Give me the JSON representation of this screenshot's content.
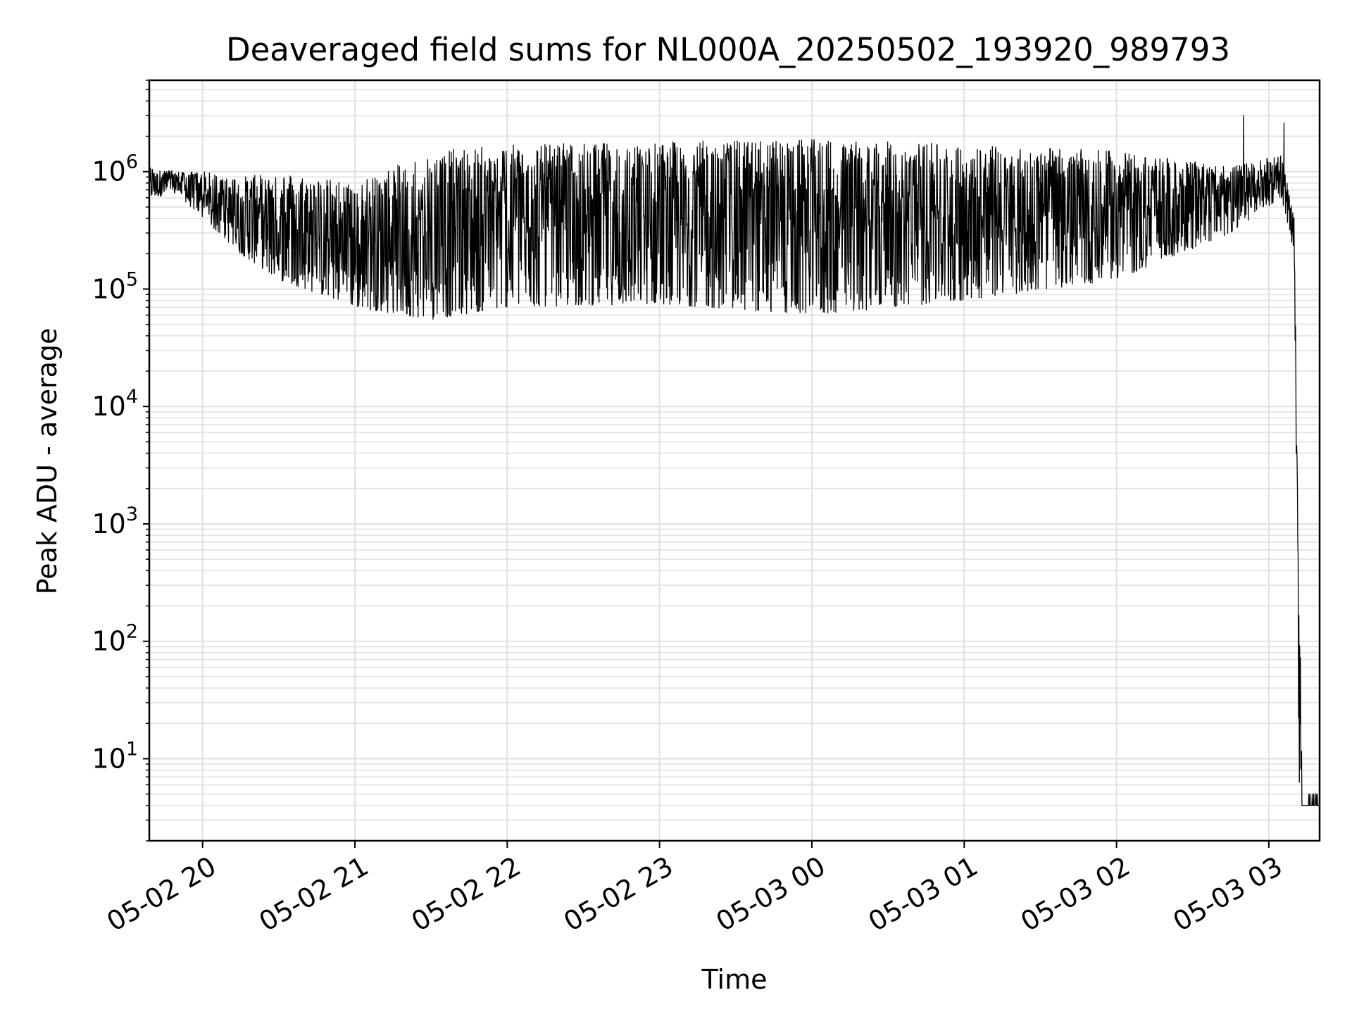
{
  "chart_data": {
    "type": "line",
    "title": "Deaveraged field sums for NL000A_20250502_193920_989793",
    "xlabel": "Time",
    "ylabel": "Peak ADU - average",
    "yscale": "log",
    "ylim": [
      2,
      6000000
    ],
    "xlim": [
      "05-02 19:39",
      "05-03 03:20"
    ],
    "grid": true,
    "x_tick_labels": [
      "05-02 20",
      "05-02 21",
      "05-02 22",
      "05-02 23",
      "05-03 00",
      "05-03 01",
      "05-03 02",
      "05-03 03"
    ],
    "y_tick_labels": [
      {
        "base": "10",
        "exp": "1"
      },
      {
        "base": "10",
        "exp": "2"
      },
      {
        "base": "10",
        "exp": "3"
      },
      {
        "base": "10",
        "exp": "4"
      },
      {
        "base": "10",
        "exp": "5"
      },
      {
        "base": "10",
        "exp": "6"
      }
    ],
    "series": [
      {
        "color": "#000000",
        "envelope": [
          {
            "t": "05-02 19:39",
            "lo": 600000,
            "hi": 1100000
          },
          {
            "t": "05-02 19:50",
            "lo": 650000,
            "hi": 1000000
          },
          {
            "t": "05-02 20:00",
            "lo": 400000,
            "hi": 1000000
          },
          {
            "t": "05-02 20:15",
            "lo": 200000,
            "hi": 900000
          },
          {
            "t": "05-02 20:30",
            "lo": 120000,
            "hi": 1000000
          },
          {
            "t": "05-02 21:00",
            "lo": 70000,
            "hi": 800000
          },
          {
            "t": "05-02 21:30",
            "lo": 55000,
            "hi": 1500000
          },
          {
            "t": "05-02 22:00",
            "lo": 70000,
            "hi": 1700000
          },
          {
            "t": "05-02 23:00",
            "lo": 75000,
            "hi": 1800000
          },
          {
            "t": "05-03 00:00",
            "lo": 60000,
            "hi": 1900000
          },
          {
            "t": "05-03 01:00",
            "lo": 80000,
            "hi": 1700000
          },
          {
            "t": "05-03 02:00",
            "lo": 120000,
            "hi": 1500000
          },
          {
            "t": "05-03 02:45",
            "lo": 300000,
            "hi": 1100000
          },
          {
            "t": "05-03 03:05",
            "lo": 600000,
            "hi": 1400000
          },
          {
            "t": "05-03 03:10",
            "lo": 200000,
            "hi": 400000
          },
          {
            "t": "05-03 03:12",
            "lo": 4,
            "hi": 100
          },
          {
            "t": "05-03 03:20",
            "lo": 4,
            "hi": 4
          }
        ],
        "spikes": [
          {
            "t": "05-03 02:50",
            "value": 3000000
          },
          {
            "t": "05-03 03:06",
            "value": 2600000
          }
        ]
      }
    ]
  }
}
